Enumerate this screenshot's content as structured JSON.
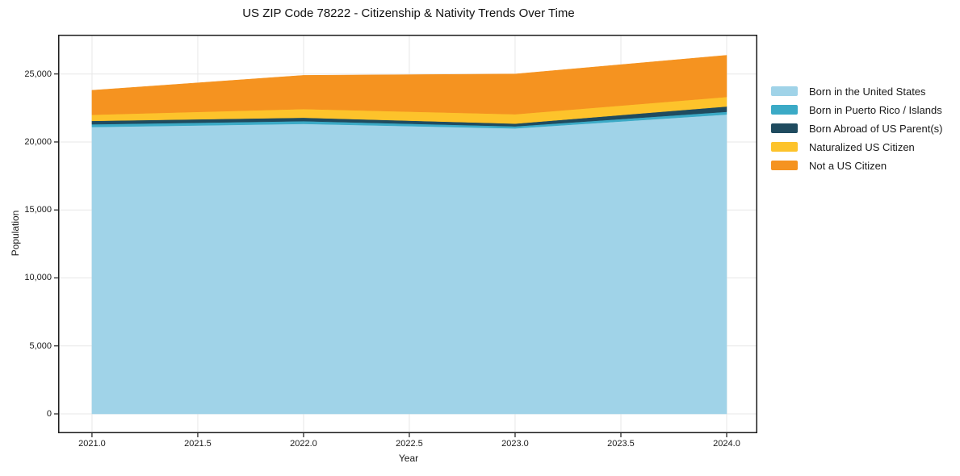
{
  "chart_data": {
    "type": "area",
    "stacked": true,
    "title": "US ZIP Code 78222 - Citizenship & Nativity Trends Over Time",
    "xlabel": "Year",
    "ylabel": "Population",
    "x": [
      2021,
      2022,
      2023,
      2024
    ],
    "series": [
      {
        "name": "Born in the United States",
        "color": "#A0D3E8",
        "values": [
          21100,
          21330,
          21000,
          22020
        ]
      },
      {
        "name": "Born in Puerto Rico / Islands",
        "color": "#3BAAC6",
        "values": [
          200,
          200,
          150,
          200
        ]
      },
      {
        "name": "Born Abroad of US Parent(s)",
        "color": "#1F4B5F",
        "values": [
          250,
          255,
          200,
          390
        ]
      },
      {
        "name": "Naturalized US Citizen",
        "color": "#FDC32B",
        "values": [
          450,
          635,
          690,
          700
        ]
      },
      {
        "name": "Not a US Citizen",
        "color": "#F59320",
        "values": [
          1800,
          2480,
          2960,
          3065
        ]
      }
    ],
    "x_ticks": [
      {
        "value": 2021.0,
        "label": "2021.0"
      },
      {
        "value": 2021.5,
        "label": "2021.5"
      },
      {
        "value": 2022.0,
        "label": "2022.0"
      },
      {
        "value": 2022.5,
        "label": "2022.5"
      },
      {
        "value": 2023.0,
        "label": "2023.0"
      },
      {
        "value": 2023.5,
        "label": "2023.5"
      },
      {
        "value": 2024.0,
        "label": "2024.0"
      }
    ],
    "y_ticks": [
      {
        "value": 0,
        "label": "0"
      },
      {
        "value": 5000,
        "label": "5,000"
      },
      {
        "value": 10000,
        "label": "10,000"
      },
      {
        "value": 15000,
        "label": "15,000"
      },
      {
        "value": 20000,
        "label": "20,000"
      },
      {
        "value": 25000,
        "label": "25,000"
      }
    ],
    "axis_range": {
      "x": [
        2020.84,
        2024.145
      ],
      "y": [
        -1424,
        27890
      ]
    },
    "grid": true,
    "legend_position": "right-outside",
    "colors": {
      "spine": "#1a1a1a",
      "grid": "#e7e7e7",
      "text": "#1a1a1a",
      "background": "#ffffff"
    }
  }
}
